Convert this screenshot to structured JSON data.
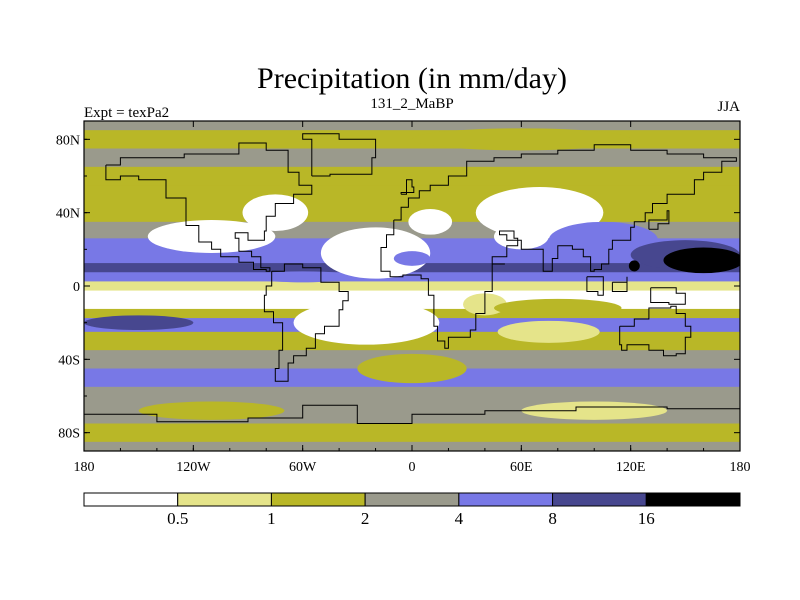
{
  "chart_data": {
    "type": "heatmap",
    "title": "Precipitation (in mm/day)",
    "left_label": "Expt = texPa2",
    "center_label": "131_2_MaBP",
    "right_label": "JJA",
    "x_ticks": [
      "180",
      "120W",
      "60W",
      "0",
      "60E",
      "120E",
      "180"
    ],
    "x_values": [
      -180,
      -120,
      -60,
      0,
      60,
      120,
      180
    ],
    "y_ticks": [
      "80N",
      "40N",
      "0",
      "40S",
      "80S"
    ],
    "y_values": [
      80,
      40,
      0,
      -40,
      -80
    ],
    "xlim": [
      -180,
      180
    ],
    "ylim": [
      -90,
      90
    ],
    "levels": [
      "0.5",
      "1",
      "2",
      "4",
      "8",
      "16"
    ],
    "level_values": [
      0.5,
      1,
      2,
      4,
      8,
      16
    ],
    "colors": [
      "#ffffff",
      "#e5e48a",
      "#b9b727",
      "#9a9a8c",
      "#7878e6",
      "#47478f",
      "#000000"
    ],
    "bands": [
      {
        "lat": 90,
        "value": 3.0
      },
      {
        "lat": 80,
        "value": 1.5
      },
      {
        "lat": 70,
        "value": 2.5
      },
      {
        "lat": 60,
        "value": 1.5
      },
      {
        "lat": 50,
        "value": 1.2
      },
      {
        "lat": 40,
        "value": 1.5
      },
      {
        "lat": 30,
        "value": 2.5
      },
      {
        "lat": 22,
        "value": 5.0
      },
      {
        "lat": 15,
        "value": 5.0
      },
      {
        "lat": 10,
        "value": 9.0
      },
      {
        "lat": 5,
        "value": 6.0
      },
      {
        "lat": 0,
        "value": 0.7
      },
      {
        "lat": -5,
        "value": 0.3
      },
      {
        "lat": -10,
        "value": 0.3
      },
      {
        "lat": -15,
        "value": 1.5
      },
      {
        "lat": -20,
        "value": 5.0
      },
      {
        "lat": -30,
        "value": 1.5
      },
      {
        "lat": -40,
        "value": 3.0
      },
      {
        "lat": -50,
        "value": 5.0
      },
      {
        "lat": -60,
        "value": 3.0
      },
      {
        "lat": -70,
        "value": 2.0
      },
      {
        "lat": -80,
        "value": 1.5
      },
      {
        "lat": -90,
        "value": 2.5
      }
    ],
    "features": [
      {
        "lon": -110,
        "lat": 27,
        "value": 0.3,
        "rx": 35,
        "ry": 9
      },
      {
        "lon": -75,
        "lat": 40,
        "value": 0.3,
        "rx": 18,
        "ry": 10
      },
      {
        "lon": -60,
        "lat": 5,
        "value": 7.0,
        "rx": 30,
        "ry": 3
      },
      {
        "lon": -20,
        "lat": 18,
        "value": 0.3,
        "rx": 30,
        "ry": 14
      },
      {
        "lon": 0,
        "lat": 15,
        "value": 5.0,
        "rx": 10,
        "ry": 4
      },
      {
        "lon": 70,
        "lat": 40,
        "value": 0.3,
        "rx": 35,
        "ry": 14
      },
      {
        "lon": 60,
        "lat": 27,
        "value": 0.3,
        "rx": 15,
        "ry": 7
      },
      {
        "lon": 10,
        "lat": 35,
        "value": 0.3,
        "rx": 12,
        "ry": 7
      },
      {
        "lon": 105,
        "lat": 25,
        "value": 5.0,
        "rx": 30,
        "ry": 10
      },
      {
        "lon": 150,
        "lat": 17,
        "value": 10.0,
        "rx": 30,
        "ry": 8
      },
      {
        "lon": 160,
        "lat": 14,
        "value": 20.0,
        "rx": 22,
        "ry": 7
      },
      {
        "lon": 122,
        "lat": 11,
        "value": 20.0,
        "rx": 3,
        "ry": 3
      },
      {
        "lon": -25,
        "lat": -20,
        "value": 0.3,
        "rx": 40,
        "ry": 12
      },
      {
        "lon": 40,
        "lat": -10,
        "value": 0.8,
        "rx": 12,
        "ry": 6
      },
      {
        "lon": 75,
        "lat": -25,
        "value": 0.8,
        "rx": 28,
        "ry": 6
      },
      {
        "lon": 80,
        "lat": -12,
        "value": 1.5,
        "rx": 35,
        "ry": 5
      },
      {
        "lon": -150,
        "lat": -20,
        "value": 9.0,
        "rx": 30,
        "ry": 4
      },
      {
        "lon": 100,
        "lat": -68,
        "value": 0.8,
        "rx": 40,
        "ry": 5
      },
      {
        "lon": -110,
        "lat": -68,
        "value": 1.5,
        "rx": 40,
        "ry": 5
      },
      {
        "lon": 0,
        "lat": -45,
        "value": 1.5,
        "rx": 30,
        "ry": 8
      },
      {
        "lon": 60,
        "lat": 80,
        "value": 1.5,
        "rx": 60,
        "ry": 6
      }
    ],
    "coastlines": [
      [
        [
          -168,
          66
        ],
        [
          -160,
          70
        ],
        [
          -140,
          70
        ],
        [
          -125,
          72
        ],
        [
          -95,
          78
        ],
        [
          -80,
          74
        ],
        [
          -68,
          62
        ],
        [
          -62,
          55
        ],
        [
          -55,
          50
        ],
        [
          -65,
          45
        ],
        [
          -75,
          38
        ],
        [
          -80,
          30
        ],
        [
          -81,
          25
        ],
        [
          -90,
          29
        ],
        [
          -97,
          26
        ],
        [
          -95,
          19
        ],
        [
          -88,
          16
        ],
        [
          -83,
          10
        ],
        [
          -78,
          8
        ],
        [
          -80,
          9
        ],
        [
          -87,
          13
        ],
        [
          -95,
          16
        ],
        [
          -105,
          20
        ],
        [
          -110,
          24
        ],
        [
          -117,
          33
        ],
        [
          -124,
          40
        ],
        [
          -124,
          48
        ],
        [
          -135,
          58
        ],
        [
          -150,
          60
        ],
        [
          -160,
          58
        ],
        [
          -168,
          66
        ]
      ],
      [
        [
          -77,
          8
        ],
        [
          -70,
          12
        ],
        [
          -60,
          10
        ],
        [
          -50,
          2
        ],
        [
          -40,
          -3
        ],
        [
          -35,
          -8
        ],
        [
          -38,
          -13
        ],
        [
          -40,
          -22
        ],
        [
          -48,
          -26
        ],
        [
          -53,
          -34
        ],
        [
          -58,
          -38
        ],
        [
          -65,
          -42
        ],
        [
          -68,
          -52
        ],
        [
          -72,
          -52
        ],
        [
          -75,
          -45
        ],
        [
          -73,
          -35
        ],
        [
          -71,
          -20
        ],
        [
          -76,
          -14
        ],
        [
          -81,
          -5
        ],
        [
          -80,
          0
        ],
        [
          -77,
          8
        ]
      ],
      [
        [
          -10,
          36
        ],
        [
          -6,
          43
        ],
        [
          -2,
          48
        ],
        [
          4,
          52
        ],
        [
          10,
          55
        ],
        [
          20,
          60
        ],
        [
          30,
          68
        ],
        [
          45,
          70
        ],
        [
          60,
          72
        ],
        [
          80,
          74
        ],
        [
          100,
          77
        ],
        [
          120,
          74
        ],
        [
          140,
          72
        ],
        [
          160,
          70
        ],
        [
          178,
          68
        ],
        [
          170,
          62
        ],
        [
          160,
          58
        ],
        [
          155,
          50
        ],
        [
          140,
          45
        ],
        [
          132,
          40
        ],
        [
          128,
          35
        ],
        [
          122,
          32
        ],
        [
          120,
          25
        ],
        [
          110,
          20
        ],
        [
          108,
          12
        ],
        [
          104,
          9
        ],
        [
          100,
          8
        ],
        [
          98,
          16
        ],
        [
          94,
          20
        ],
        [
          88,
          22
        ],
        [
          80,
          15
        ],
        [
          77,
          8
        ],
        [
          72,
          20
        ],
        [
          60,
          25
        ],
        [
          55,
          25
        ],
        [
          52,
          28
        ],
        [
          48,
          30
        ],
        [
          56,
          26
        ],
        [
          58,
          22
        ],
        [
          52,
          16
        ],
        [
          44,
          12
        ],
        [
          51,
          12
        ],
        [
          44,
          -3
        ],
        [
          40,
          -10
        ],
        [
          40,
          -15
        ],
        [
          35,
          -24
        ],
        [
          32,
          -28
        ],
        [
          20,
          -34
        ],
        [
          18,
          -30
        ],
        [
          14,
          -22
        ],
        [
          12,
          -10
        ],
        [
          12,
          -5
        ],
        [
          9,
          4
        ],
        [
          5,
          6
        ],
        [
          -5,
          5
        ],
        [
          -12,
          8
        ],
        [
          -17,
          14
        ],
        [
          -17,
          21
        ],
        [
          -14,
          28
        ],
        [
          -10,
          36
        ]
      ],
      [
        [
          114,
          -22
        ],
        [
          122,
          -18
        ],
        [
          130,
          -12
        ],
        [
          137,
          -12
        ],
        [
          142,
          -11
        ],
        [
          145,
          -15
        ],
        [
          150,
          -22
        ],
        [
          153,
          -28
        ],
        [
          150,
          -37
        ],
        [
          145,
          -38
        ],
        [
          138,
          -35
        ],
        [
          130,
          -32
        ],
        [
          118,
          -35
        ],
        [
          115,
          -32
        ],
        [
          114,
          -22
        ]
      ],
      [
        [
          -180,
          -70
        ],
        [
          -140,
          -74
        ],
        [
          -90,
          -72
        ],
        [
          -60,
          -65
        ],
        [
          -30,
          -75
        ],
        [
          0,
          -70
        ],
        [
          40,
          -68
        ],
        [
          90,
          -66
        ],
        [
          140,
          -67
        ],
        [
          180,
          -70
        ]
      ],
      [
        [
          -55,
          60
        ],
        [
          -45,
          61
        ],
        [
          -22,
          70
        ],
        [
          -20,
          80
        ],
        [
          -40,
          83
        ],
        [
          -60,
          80
        ],
        [
          -55,
          60
        ]
      ],
      [
        [
          96,
          5
        ],
        [
          105,
          -5
        ],
        [
          102,
          -3
        ],
        [
          96,
          5
        ]
      ],
      [
        [
          110,
          2
        ],
        [
          118,
          5
        ],
        [
          118,
          -3
        ],
        [
          110,
          -3
        ],
        [
          110,
          2
        ]
      ],
      [
        [
          131,
          -1
        ],
        [
          145,
          -4
        ],
        [
          150,
          -10
        ],
        [
          141,
          -9
        ],
        [
          131,
          -1
        ]
      ],
      [
        [
          130,
          31
        ],
        [
          135,
          34
        ],
        [
          141,
          41
        ],
        [
          140,
          36
        ],
        [
          130,
          31
        ]
      ],
      [
        [
          -6,
          50
        ],
        [
          -3,
          58
        ],
        [
          0,
          54
        ],
        [
          1,
          51
        ],
        [
          -6,
          50
        ]
      ]
    ]
  }
}
